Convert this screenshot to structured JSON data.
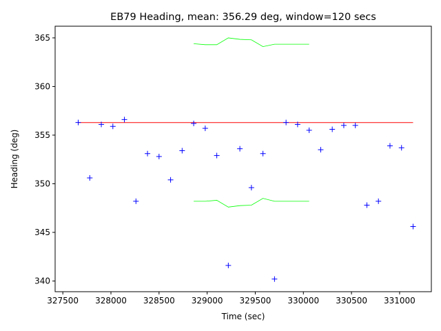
{
  "chart_data": {
    "type": "scatter",
    "title": "EB79 Heading, mean: 356.29 deg, window=120 secs",
    "xlabel": "Time (sec)",
    "ylabel": "Heading (deg)",
    "xlim": [
      327420,
      331330
    ],
    "ylim": [
      338.9,
      366.2
    ],
    "xticks": [
      327500,
      328000,
      328500,
      329000,
      329500,
      330000,
      330500,
      331000
    ],
    "yticks": [
      340,
      345,
      350,
      355,
      360,
      365
    ],
    "grid": false,
    "legend": "none",
    "colors": {
      "points": "#0000ff",
      "mean": "#ff0000",
      "bounds": "#00ff00"
    },
    "series": [
      {
        "kind": "scatter",
        "marker": "+",
        "x": [
          327660,
          327780,
          327900,
          328020,
          328140,
          328260,
          328380,
          328500,
          328620,
          328740,
          328860,
          328980,
          329100,
          329220,
          329340,
          329460,
          329580,
          329700,
          329820,
          329940,
          330060,
          330180,
          330300,
          330420,
          330540,
          330660,
          330780,
          330900,
          331020,
          331140
        ],
        "y": [
          356.3,
          350.6,
          356.1,
          355.9,
          356.6,
          348.2,
          353.1,
          352.8,
          350.4,
          353.4,
          356.2,
          355.7,
          352.9,
          341.6,
          353.6,
          349.6,
          353.1,
          340.2,
          356.3,
          356.1,
          355.5,
          353.5,
          355.6,
          356.0,
          356.0,
          347.8,
          348.2,
          353.9,
          353.7,
          345.6
        ]
      },
      {
        "kind": "line",
        "x": [
          327660,
          331140
        ],
        "y": [
          356.29,
          356.29
        ]
      },
      {
        "kind": "line",
        "x": [
          328860,
          328980,
          329100,
          329220,
          329340,
          329460,
          329580,
          329700,
          329820,
          329940,
          330060
        ],
        "y": [
          364.4,
          364.3,
          364.3,
          365.0,
          364.85,
          364.8,
          364.1,
          364.35,
          364.35,
          364.35,
          364.35
        ]
      },
      {
        "kind": "line",
        "x": [
          328860,
          328980,
          329100,
          329220,
          329340,
          329460,
          329580,
          329700,
          329820,
          329940,
          330060
        ],
        "y": [
          348.2,
          348.2,
          348.3,
          347.6,
          347.75,
          347.8,
          348.5,
          348.2,
          348.2,
          348.2,
          348.2
        ]
      }
    ]
  }
}
